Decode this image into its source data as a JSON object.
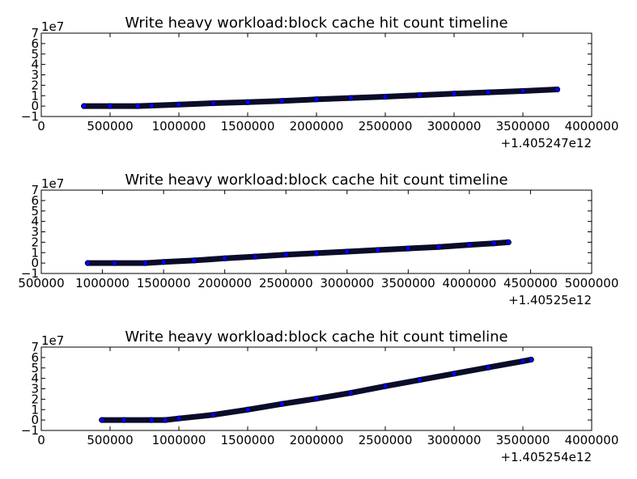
{
  "chart_data": [
    {
      "type": "scatter",
      "title": "Write heavy workload:block cache hit count timeline",
      "xlabel": "",
      "ylabel": "",
      "xlim": [
        0,
        4000000
      ],
      "ylim": [
        -1,
        7
      ],
      "x_offset_label": "+1.405247e12",
      "y_scale_label": "1e7",
      "x_ticks": [
        "0",
        "500000",
        "1000000",
        "1500000",
        "2000000",
        "2500000",
        "3000000",
        "3500000",
        "4000000"
      ],
      "y_ticks": [
        "−1",
        "0",
        "1",
        "2",
        "3",
        "4",
        "5",
        "6",
        "7"
      ],
      "points": [
        [
          310000,
          0.0
        ],
        [
          500000,
          0.0
        ],
        [
          700000,
          0.0
        ],
        [
          800000,
          0.05
        ],
        [
          1000000,
          0.15
        ],
        [
          1250000,
          0.28
        ],
        [
          1500000,
          0.38
        ],
        [
          1750000,
          0.5
        ],
        [
          2000000,
          0.65
        ],
        [
          2250000,
          0.78
        ],
        [
          2500000,
          0.9
        ],
        [
          2750000,
          1.05
        ],
        [
          3000000,
          1.2
        ],
        [
          3250000,
          1.32
        ],
        [
          3500000,
          1.45
        ],
        [
          3750000,
          1.6
        ]
      ],
      "marker_color": "#0000ff"
    },
    {
      "type": "scatter",
      "title": "Write heavy workload:block cache hit count timeline",
      "xlabel": "",
      "ylabel": "",
      "xlim": [
        500000,
        5000000
      ],
      "ylim": [
        -1,
        7
      ],
      "x_offset_label": "+1.40525e12",
      "y_scale_label": "1e7",
      "x_ticks": [
        "500000",
        "1000000",
        "1500000",
        "2000000",
        "2500000",
        "3000000",
        "3500000",
        "4000000",
        "4500000",
        "5000000"
      ],
      "y_ticks": [
        "−1",
        "0",
        "1",
        "2",
        "3",
        "4",
        "5",
        "6",
        "7"
      ],
      "points": [
        [
          880000,
          0.0
        ],
        [
          1100000,
          0.0
        ],
        [
          1350000,
          0.0
        ],
        [
          1500000,
          0.1
        ],
        [
          1750000,
          0.25
        ],
        [
          2000000,
          0.45
        ],
        [
          2250000,
          0.62
        ],
        [
          2500000,
          0.8
        ],
        [
          2750000,
          0.95
        ],
        [
          3000000,
          1.1
        ],
        [
          3250000,
          1.25
        ],
        [
          3500000,
          1.4
        ],
        [
          3750000,
          1.55
        ],
        [
          4000000,
          1.75
        ],
        [
          4200000,
          1.9
        ],
        [
          4320000,
          2.0
        ]
      ],
      "marker_color": "#0000ff"
    },
    {
      "type": "scatter",
      "title": "Write heavy workload:block cache hit count timeline",
      "xlabel": "",
      "ylabel": "",
      "xlim": [
        0,
        4000000
      ],
      "ylim": [
        -1,
        7
      ],
      "x_offset_label": "+1.405254e12",
      "y_scale_label": "1e7",
      "x_ticks": [
        "0",
        "500000",
        "1000000",
        "1500000",
        "2000000",
        "2500000",
        "3000000",
        "3500000",
        "4000000"
      ],
      "y_ticks": [
        "−1",
        "0",
        "1",
        "2",
        "3",
        "4",
        "5",
        "6",
        "7"
      ],
      "points": [
        [
          440000,
          0.0
        ],
        [
          600000,
          0.0
        ],
        [
          800000,
          0.0
        ],
        [
          900000,
          0.0
        ],
        [
          1000000,
          0.15
        ],
        [
          1250000,
          0.5
        ],
        [
          1500000,
          1.0
        ],
        [
          1750000,
          1.55
        ],
        [
          2000000,
          2.05
        ],
        [
          2250000,
          2.6
        ],
        [
          2500000,
          3.25
        ],
        [
          2750000,
          3.85
        ],
        [
          3000000,
          4.45
        ],
        [
          3250000,
          5.05
        ],
        [
          3500000,
          5.65
        ],
        [
          3560000,
          5.8
        ]
      ],
      "marker_color": "#0000ff"
    }
  ]
}
